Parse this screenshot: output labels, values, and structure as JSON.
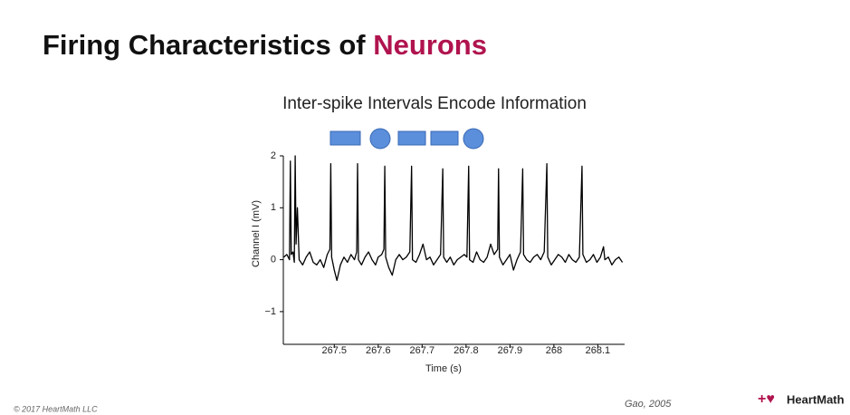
{
  "slide": {
    "title": [
      "Firing Characteristics of",
      "Neurons"
    ],
    "copyright": "© 2017 HeartMath LLC",
    "citation": "Gao, 2005",
    "logo": "HeartMath"
  },
  "chart_data": {
    "type": "line",
    "title": "Inter-spike Intervals Encode Information",
    "x_label": "Time (s)",
    "y_label": "Channel I (mV)",
    "color": "#000000",
    "xlim": [
      267.384,
      268.161
    ],
    "ylim": [
      -1.63,
      2
    ],
    "xticks": [
      267.5,
      267.6,
      267.7,
      267.8,
      267.9,
      268,
      268.1
    ],
    "yticks": [
      {
        "value": -1,
        "label": "−1"
      },
      0,
      1,
      2
    ],
    "x": [
      267.385,
      267.392,
      267.398,
      267.4,
      267.402,
      267.406,
      267.409,
      267.411,
      267.413,
      267.416,
      267.42,
      267.428,
      267.436,
      267.444,
      267.452,
      267.46,
      267.468,
      267.476,
      267.484,
      267.49,
      267.492,
      267.494,
      267.5,
      267.506,
      267.514,
      267.522,
      267.53,
      267.538,
      267.546,
      267.551,
      267.553,
      267.555,
      267.562,
      267.57,
      267.578,
      267.586,
      267.594,
      267.6,
      267.608,
      267.613,
      267.615,
      267.617,
      267.624,
      267.632,
      267.64,
      267.648,
      267.656,
      267.664,
      267.672,
      267.676,
      267.678,
      267.686,
      267.694,
      267.702,
      267.71,
      267.718,
      267.726,
      267.734,
      267.742,
      267.747,
      267.749,
      267.756,
      267.764,
      267.772,
      267.78,
      267.788,
      267.796,
      267.802,
      267.806,
      267.808,
      267.816,
      267.824,
      267.832,
      267.84,
      267.848,
      267.856,
      267.864,
      267.872,
      267.874,
      267.876,
      267.884,
      267.892,
      267.9,
      267.908,
      267.916,
      267.924,
      267.929,
      267.931,
      267.938,
      267.946,
      267.954,
      267.962,
      267.97,
      267.978,
      267.984,
      267.986,
      267.994,
      268.002,
      268.01,
      268.018,
      268.026,
      268.034,
      268.042,
      268.05,
      268.058,
      268.064,
      268.066,
      268.074,
      268.082,
      268.09,
      268.098,
      268.106,
      268.113,
      268.116,
      268.124,
      268.132,
      268.14,
      268.148,
      268.156
    ],
    "values": [
      0.05,
      0.1,
      0.0,
      1.9,
      0.1,
      0.15,
      -0.05,
      2.0,
      0.3,
      1.0,
      0.0,
      -0.1,
      0.05,
      0.15,
      -0.05,
      -0.1,
      0.0,
      -0.15,
      0.1,
      0.2,
      1.85,
      0.05,
      -0.2,
      -0.4,
      -0.1,
      0.05,
      -0.05,
      0.1,
      0.0,
      0.15,
      1.85,
      0.0,
      -0.1,
      0.05,
      0.15,
      0.0,
      -0.1,
      0.05,
      0.1,
      0.2,
      1.8,
      0.05,
      -0.15,
      -0.3,
      0.0,
      0.1,
      0.0,
      0.05,
      0.15,
      1.8,
      0.0,
      -0.05,
      0.1,
      0.3,
      0.0,
      0.05,
      -0.1,
      0.0,
      0.1,
      1.75,
      0.05,
      -0.05,
      0.05,
      -0.1,
      0.0,
      0.05,
      0.1,
      0.05,
      1.8,
      0.0,
      -0.05,
      0.15,
      0.0,
      -0.05,
      0.05,
      0.3,
      0.1,
      0.2,
      1.75,
      0.05,
      -0.1,
      0.0,
      0.1,
      -0.2,
      0.0,
      0.15,
      1.75,
      0.1,
      0.0,
      -0.05,
      0.05,
      0.1,
      0.0,
      0.15,
      1.85,
      0.05,
      -0.1,
      0.0,
      0.1,
      0.05,
      -0.05,
      0.1,
      0.0,
      -0.05,
      0.05,
      1.8,
      0.1,
      -0.05,
      0.0,
      0.1,
      -0.05,
      0.05,
      0.25,
      0.0,
      0.05,
      -0.1,
      0.0,
      0.05,
      -0.05
    ]
  }
}
